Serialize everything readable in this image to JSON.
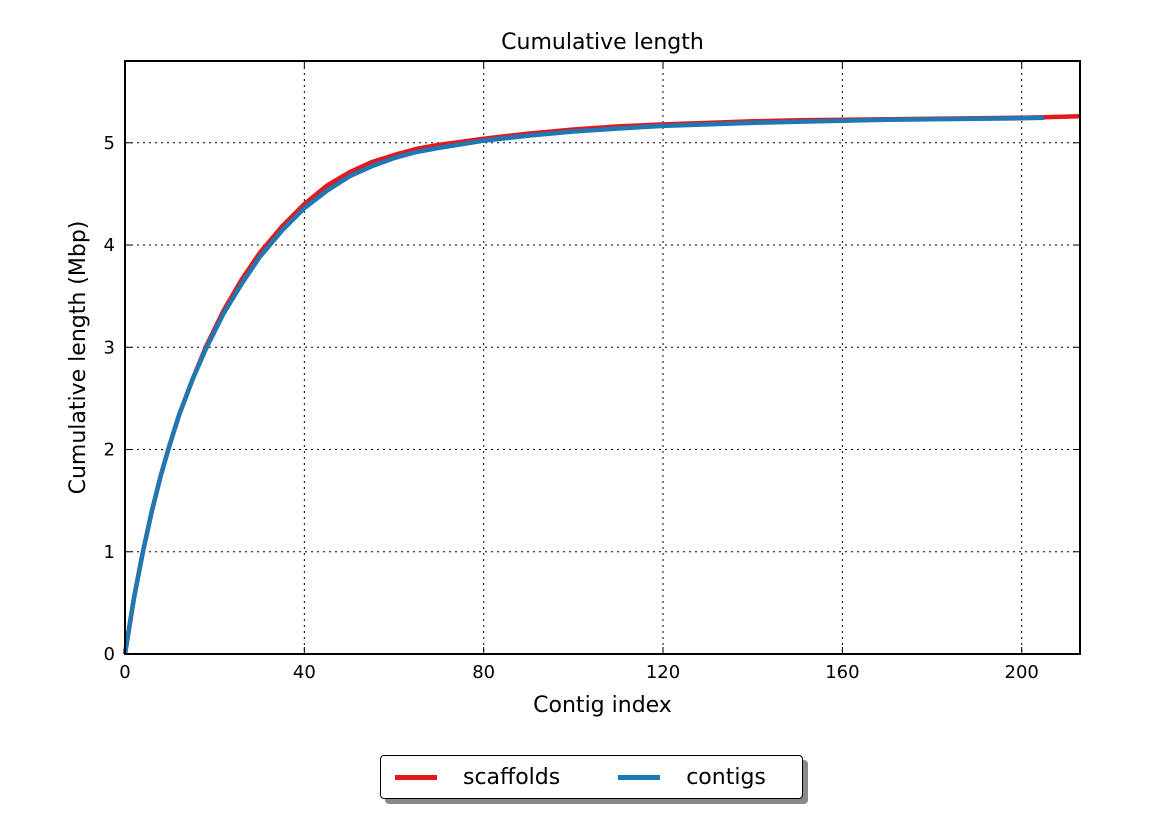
{
  "chart_data": {
    "type": "line",
    "title": "Cumulative length",
    "xlabel": "Contig index",
    "ylabel": "Cumulative length (Mbp)",
    "xlim": [
      0,
      213
    ],
    "ylim": [
      0,
      5.8
    ],
    "xticks": [
      0,
      40,
      80,
      120,
      160,
      200
    ],
    "yticks": [
      0,
      1,
      2,
      3,
      4,
      5
    ],
    "grid": true,
    "legend_position": "bottom-center-outside",
    "series": [
      {
        "name": "scaffolds",
        "color": "#e31a1c",
        "x": [
          0,
          2,
          4,
          6,
          8,
          10,
          12,
          15,
          18,
          22,
          26,
          30,
          35,
          40,
          45,
          50,
          55,
          60,
          65,
          70,
          80,
          90,
          100,
          110,
          120,
          130,
          140,
          150,
          160,
          170,
          180,
          190,
          200,
          205,
          213
        ],
        "y": [
          0,
          0.55,
          1.0,
          1.4,
          1.75,
          2.05,
          2.33,
          2.68,
          3.0,
          3.36,
          3.66,
          3.92,
          4.18,
          4.4,
          4.58,
          4.71,
          4.81,
          4.88,
          4.94,
          4.98,
          5.04,
          5.09,
          5.13,
          5.16,
          5.18,
          5.195,
          5.21,
          5.22,
          5.225,
          5.23,
          5.235,
          5.24,
          5.245,
          5.25,
          5.26
        ]
      },
      {
        "name": "contigs",
        "color": "#1f78b4",
        "x": [
          0,
          2,
          4,
          6,
          8,
          10,
          12,
          15,
          18,
          22,
          26,
          30,
          35,
          40,
          45,
          50,
          55,
          60,
          65,
          70,
          80,
          90,
          100,
          110,
          120,
          130,
          140,
          150,
          160,
          170,
          180,
          190,
          200,
          205
        ],
        "y": [
          0,
          0.55,
          1.0,
          1.4,
          1.75,
          2.05,
          2.33,
          2.68,
          2.98,
          3.33,
          3.62,
          3.88,
          4.14,
          4.36,
          4.53,
          4.67,
          4.77,
          4.85,
          4.91,
          4.95,
          5.02,
          5.07,
          5.11,
          5.14,
          5.165,
          5.18,
          5.195,
          5.205,
          5.215,
          5.225,
          5.23,
          5.235,
          5.24,
          5.245
        ]
      }
    ]
  }
}
